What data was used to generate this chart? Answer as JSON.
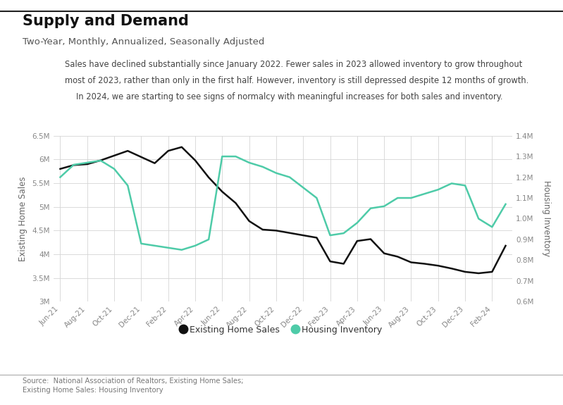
{
  "title": "Supply and Demand",
  "subtitle": "Two-Year, Monthly, Annualized, Seasonally Adjusted",
  "annotation_lines": [
    "Sales have declined substantially since January 2022. Fewer sales in 2023 allowed inventory to grow throughout",
    "most of 2023, rather than only in the first half. However, inventory is still depressed despite 12 months of growth.",
    "In 2024, we are starting to see signs of normalcy with meaningful increases for both sales and inventory."
  ],
  "xlabel_ticks": [
    "Jun-21",
    "Aug-21",
    "Oct-21",
    "Dec-21",
    "Feb-22",
    "Apr-22",
    "Jun-22",
    "Aug-22",
    "Oct-22",
    "Dec-22",
    "Feb-23",
    "Apr-23",
    "Jun-23",
    "Aug-23",
    "Oct-23",
    "Dec-23",
    "Feb-24"
  ],
  "ylabel_left": "Existing Home Sales",
  "ylabel_right": "Housing Inventory",
  "source": "Source:  National Association of Realtors, Existing Home Sales;",
  "source2": "Existing Home Sales: Housing Inventory",
  "legend_entries": [
    "Existing Home Sales",
    "Housing Inventory"
  ],
  "line1_color": "#111111",
  "line2_color": "#4ecba8",
  "background_color": "#ffffff",
  "existing_home_sales": [
    5.8,
    5.88,
    5.9,
    5.98,
    6.08,
    6.18,
    6.05,
    5.92,
    6.18,
    6.26,
    5.98,
    5.62,
    5.32,
    5.08,
    4.7,
    4.52,
    4.5,
    4.45,
    4.4,
    4.35,
    3.85,
    3.8,
    4.28,
    4.32,
    4.02,
    3.95,
    3.83,
    3.8,
    3.76,
    3.7,
    3.63,
    3.6,
    3.63,
    4.18
  ],
  "housing_inventory": [
    1.2,
    1.26,
    1.27,
    1.28,
    1.24,
    1.16,
    0.88,
    0.87,
    0.86,
    0.85,
    0.87,
    0.9,
    1.3,
    1.3,
    1.27,
    1.25,
    1.22,
    1.2,
    1.15,
    1.1,
    0.92,
    0.93,
    0.98,
    1.05,
    1.06,
    1.1,
    1.1,
    1.12,
    1.14,
    1.17,
    1.16,
    1.0,
    0.96,
    1.07
  ],
  "n_points": 34,
  "yleft_min": 3.0,
  "yleft_max": 6.5,
  "yright_min": 0.6,
  "yright_max": 1.4,
  "tick_color": "#888888",
  "grid_color": "#d5d5d5",
  "label_color": "#666666"
}
